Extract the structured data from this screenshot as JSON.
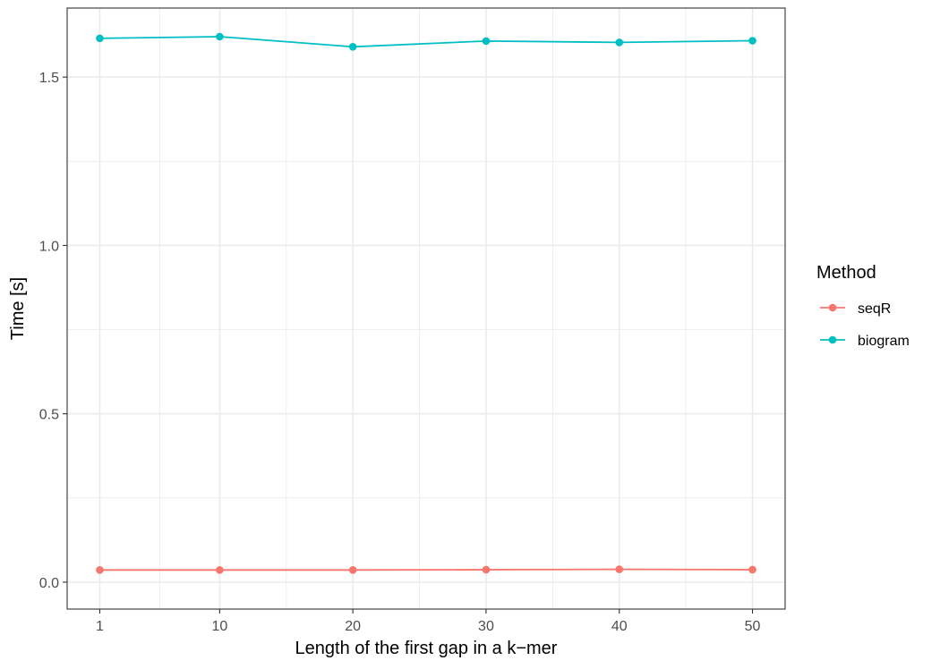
{
  "chart_data": {
    "type": "line",
    "xlabel": "Length of the first gap in a k−mer",
    "ylabel": "Time [s]",
    "x": [
      1,
      10,
      20,
      30,
      40,
      50
    ],
    "x_ticks": [
      "1",
      "10",
      "20",
      "30",
      "40",
      "50"
    ],
    "y_ticks": [
      "0.0",
      "0.5",
      "1.0",
      "1.5"
    ],
    "xlim": [
      -1.45,
      52.45
    ],
    "ylim": [
      -0.08,
      1.705
    ],
    "grid": true,
    "legend": {
      "title": "Method",
      "position": "right"
    },
    "series": [
      {
        "name": "seqR",
        "color": "#F8766D",
        "values": [
          0.036,
          0.036,
          0.036,
          0.037,
          0.038,
          0.037
        ]
      },
      {
        "name": "biogram",
        "color": "#00BFC4",
        "values": [
          1.615,
          1.62,
          1.59,
          1.607,
          1.603,
          1.608
        ]
      }
    ]
  }
}
